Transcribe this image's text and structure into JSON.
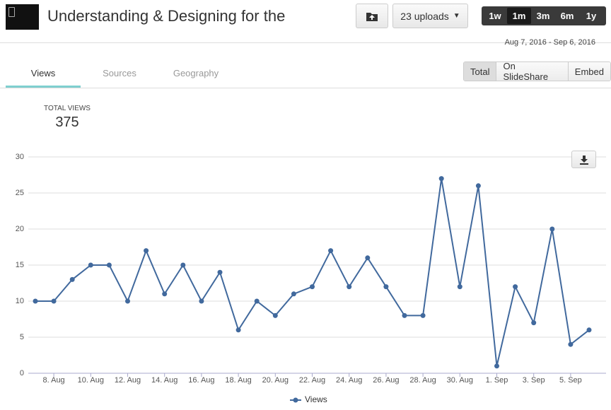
{
  "header": {
    "title": "Understanding & Designing for the",
    "uploads": "23 uploads",
    "ranges": [
      "1w",
      "1m",
      "3m",
      "6m",
      "1y"
    ],
    "active_range": 1,
    "date_range": "Aug 7, 2016 - Sep 6, 2016"
  },
  "tabs": {
    "items": [
      "Views",
      "Sources",
      "Geography"
    ],
    "active": 0
  },
  "view_buttons": {
    "items": [
      "Total",
      "On SlideShare",
      "Embed"
    ],
    "active": 0
  },
  "summary": {
    "label": "TOTAL VIEWS",
    "value": 375
  },
  "chart_data": {
    "type": "line",
    "categories": [
      null,
      "8. Aug",
      null,
      "10. Aug",
      null,
      "12. Aug",
      null,
      "14. Aug",
      null,
      "16. Aug",
      null,
      "18. Aug",
      null,
      "20. Aug",
      null,
      "22. Aug",
      null,
      "24. Aug",
      null,
      "26. Aug",
      null,
      "28. Aug",
      null,
      "30. Aug",
      null,
      "1. Sep",
      null,
      "3. Sep",
      null,
      "5. Sep",
      null
    ],
    "series": [
      {
        "name": "Views",
        "color": "#41699d",
        "values": [
          10,
          10,
          13,
          15,
          15,
          10,
          17,
          11,
          15,
          10,
          14,
          6,
          10,
          8,
          11,
          12,
          17,
          12,
          16,
          12,
          8,
          8,
          27,
          12,
          26,
          1,
          12,
          7,
          20,
          4,
          6
        ]
      }
    ],
    "ylim": [
      0,
      30
    ],
    "yticks": [
      0,
      5,
      10,
      15,
      20,
      25,
      30
    ],
    "grid": true,
    "legend": "bottom"
  }
}
